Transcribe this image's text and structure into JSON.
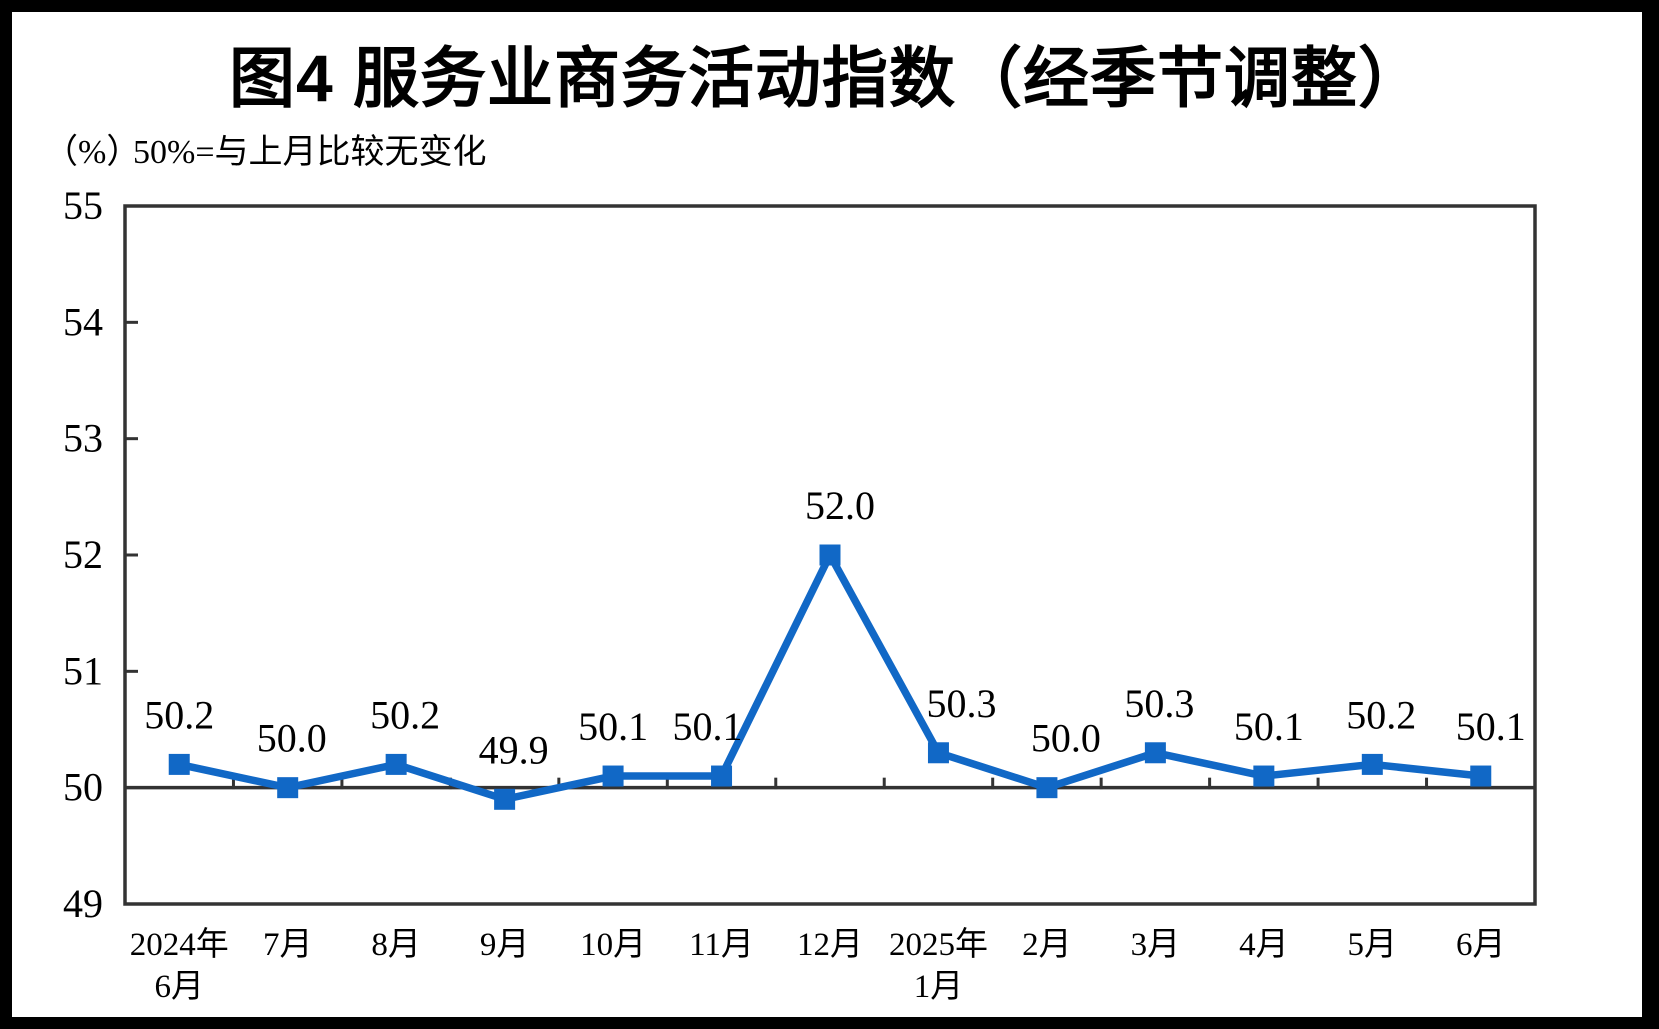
{
  "header": {
    "title": "图4 服务业商务活动指数（经季节调整）",
    "subtitle_unit": "（%）",
    "subtitle_note": "50%=与上月比较无变化"
  },
  "chart_data": {
    "type": "line",
    "title": "图4 服务业商务活动指数（经季节调整）",
    "subtitle": "（%） 50%=与上月比较无变化",
    "categories": [
      "2024年6月",
      "7月",
      "8月",
      "9月",
      "10月",
      "11月",
      "12月",
      "2025年1月",
      "2月",
      "3月",
      "4月",
      "5月",
      "6月"
    ],
    "category_label_lines": [
      [
        "2024年",
        "6月"
      ],
      [
        "7月"
      ],
      [
        "8月"
      ],
      [
        "9月"
      ],
      [
        "10月"
      ],
      [
        "11月"
      ],
      [
        "12月"
      ],
      [
        "2025年",
        "1月"
      ],
      [
        "2月"
      ],
      [
        "3月"
      ],
      [
        "4月"
      ],
      [
        "5月"
      ],
      [
        "6月"
      ]
    ],
    "series": [
      {
        "name": "服务业商务活动指数",
        "values": [
          50.2,
          50.0,
          50.2,
          49.9,
          50.1,
          50.1,
          52.0,
          50.3,
          50.0,
          50.3,
          50.1,
          50.2,
          50.1
        ]
      }
    ],
    "data_labels": [
      "50.2",
      "50.0",
      "50.2",
      "49.9",
      "50.1",
      "50.1",
      "52.0",
      "50.3",
      "50.0",
      "50.3",
      "50.1",
      "50.2",
      "50.1"
    ],
    "ylim": [
      49,
      55
    ],
    "yticks": [
      49,
      50,
      51,
      52,
      53,
      54,
      55
    ],
    "baseline_value": 50,
    "marker": "square",
    "grid": "off",
    "legend": "none",
    "colors": {
      "series": "#1168C6",
      "axis": "#333333",
      "text": "#000000",
      "frame": "#000000",
      "canvas": "#ffffff"
    }
  }
}
